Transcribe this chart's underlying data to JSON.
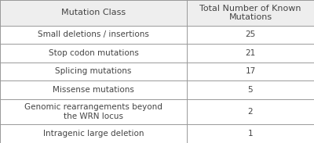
{
  "col_headers": [
    "Mutation Class",
    "Total Number of Known\nMutations"
  ],
  "rows": [
    [
      "Small deletions / insertions",
      "25"
    ],
    [
      "Stop codon mutations",
      "21"
    ],
    [
      "Splicing mutations",
      "17"
    ],
    [
      "Missense mutations",
      "5"
    ],
    [
      "Genomic rearrangements beyond\nthe WRN locus",
      "2"
    ],
    [
      "Intragenic large deletion",
      "1"
    ]
  ],
  "col_split": 0.595,
  "header_bg": "#eeeeee",
  "row_bg": "#ffffff",
  "border_color": "#999999",
  "text_color": "#444444",
  "font_size": 7.5,
  "header_font_size": 8.0,
  "fig_width": 4.0,
  "fig_height": 1.83,
  "dpi": 100
}
